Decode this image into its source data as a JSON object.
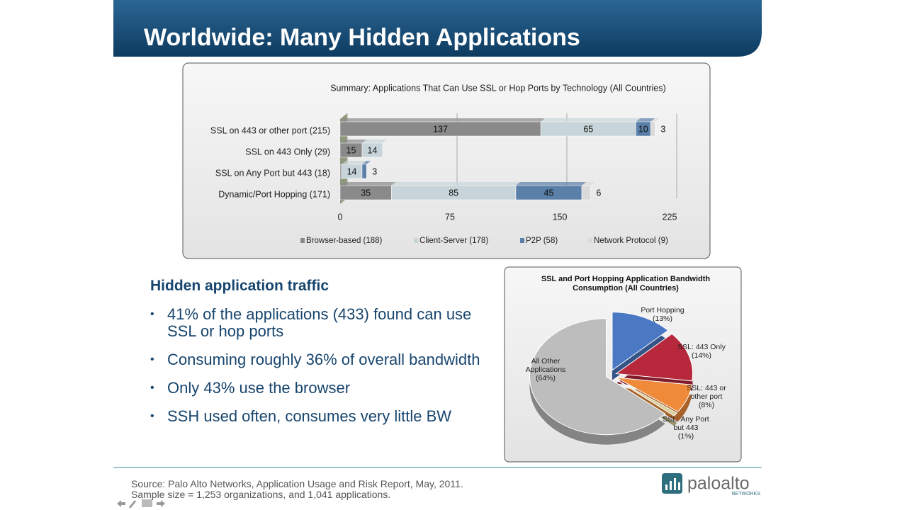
{
  "title": "Worldwide: Many Hidden Applications",
  "chart_data": [
    {
      "type": "hbar-stacked",
      "title": "Summary: Applications That Can Use SSL or Hop Ports by Technology (All Countries)",
      "categories": [
        "SSL on 443 or other port (215)",
        "SSL on 443 Only (29)",
        "SSL on Any Port but 443 (18)",
        "Dynamic/Port Hopping (171)"
      ],
      "series": [
        {
          "name": "Browser-based (188)",
          "color": "#8a8a8a",
          "values": [
            137,
            15,
            1,
            35
          ]
        },
        {
          "name": "Client-Server (178)",
          "color": "#c7d4d9",
          "values": [
            65,
            14,
            14,
            85
          ]
        },
        {
          "name": "P2P (58)",
          "color": "#5a7fa8",
          "values": [
            10,
            null,
            3,
            45
          ]
        },
        {
          "name": "Network Protocol (9)",
          "color": "#dadada",
          "values": [
            3,
            null,
            null,
            6
          ]
        }
      ],
      "xlim": [
        0,
        225
      ],
      "xticks": [
        0,
        75,
        150,
        225
      ],
      "grid": true,
      "legend": "bottom"
    },
    {
      "type": "pie",
      "title": "SSL and Port Hopping Application Bandwidth Consumption (All Countries)",
      "categories": [
        "Port Hopping",
        "SSL: 443 Only",
        "SSL: 443 or other port",
        "SSL: Any Port but 443",
        "All Other Applications"
      ],
      "values": [
        13,
        14,
        8,
        1,
        64
      ],
      "value_labels": [
        "(13%)",
        "(14%)",
        "(8%)",
        "(1%)",
        "(64%)"
      ],
      "colors": [
        "#4a78c2",
        "#b8283c",
        "#ef8a3a",
        "#d9cf9e",
        "#bdbdbd"
      ]
    }
  ],
  "text": {
    "heading": "Hidden application traffic",
    "bullets": [
      "41% of the applications (433) found can use SSL or hop ports",
      "Consuming roughly 36% of overall bandwidth",
      "Only 43% use the browser",
      "SSH used often, consumes very little BW"
    ]
  },
  "source": [
    "Source: Palo Alto Networks, Application Usage and Risk Report, May, 2011.",
    "Sample size = 1,253 organizations, and 1,041 applications."
  ],
  "logo": {
    "name": "paloalto",
    "sub": "NETWORKS"
  }
}
